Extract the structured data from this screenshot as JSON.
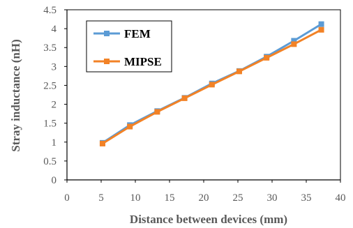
{
  "chart_data": {
    "type": "line",
    "title": "",
    "xlabel": "Distance between devices (mm)",
    "ylabel": "Stray inductance (nH)",
    "xlim": [
      0,
      40
    ],
    "ylim": [
      0,
      4.5
    ],
    "xticks": [
      "0",
      "5",
      "10",
      "15",
      "20",
      "25",
      "30",
      "35",
      "40"
    ],
    "yticks": [
      "0",
      "0.5",
      "1",
      "1.5",
      "2",
      "2.5",
      "3",
      "3.5",
      "4",
      "4.5"
    ],
    "grid": false,
    "legend_position": "top-left",
    "series": [
      {
        "name": "FEM",
        "color": "#5B9BD5",
        "marker": "square",
        "x": [
          5.2,
          9.2,
          13.2,
          17.2,
          21.2,
          25.2,
          29.2,
          33.2,
          37.2
        ],
        "y": [
          0.98,
          1.45,
          1.82,
          2.17,
          2.55,
          2.88,
          3.26,
          3.68,
          4.12
        ]
      },
      {
        "name": "MIPSE",
        "color": "#F28226",
        "marker": "square",
        "x": [
          5.2,
          9.2,
          13.2,
          17.2,
          21.2,
          25.2,
          29.2,
          33.2,
          37.2
        ],
        "y": [
          0.96,
          1.41,
          1.8,
          2.16,
          2.52,
          2.87,
          3.23,
          3.59,
          3.97
        ]
      }
    ]
  }
}
